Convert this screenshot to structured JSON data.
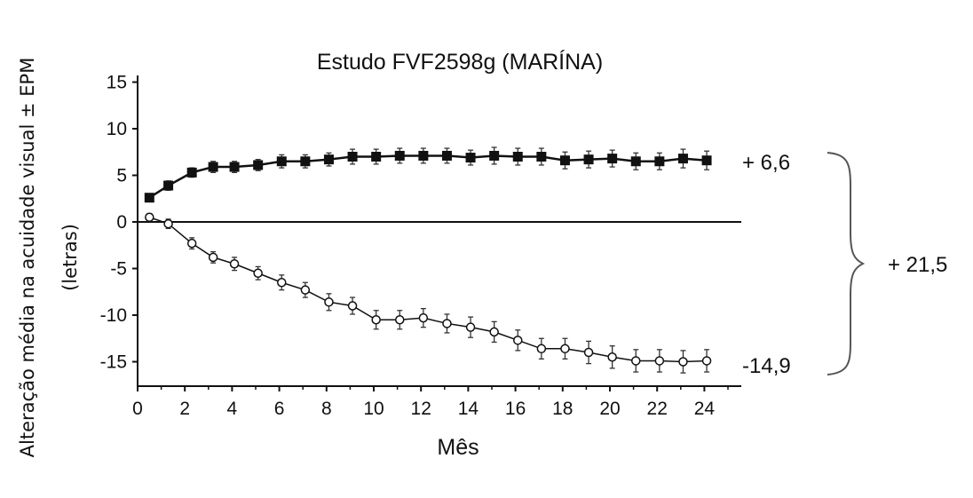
{
  "chart_data": {
    "type": "line",
    "title": "Estudo FVF2598g (MARÍNA)",
    "xlabel": "Mês",
    "ylabel_line1": "Alteração média na acuidade visual ± EPM",
    "ylabel_line2": "(letras)",
    "xlim": [
      0,
      25
    ],
    "ylim": [
      -17,
      16
    ],
    "xticks": [
      0,
      2,
      4,
      6,
      8,
      10,
      12,
      14,
      16,
      18,
      20,
      22,
      24
    ],
    "yticks": [
      15,
      10,
      5,
      0,
      -5,
      -10,
      -15
    ],
    "grid": false,
    "zero_line": true,
    "series": [
      {
        "marker": "filled-square",
        "x": [
          0.5,
          1.3,
          2.3,
          3.2,
          4.1,
          5.1,
          6.1,
          7.1,
          8.1,
          9.1,
          10.1,
          11.1,
          12.1,
          13.1,
          14.1,
          15.1,
          16.1,
          17.1,
          18.1,
          19.1,
          20.1,
          21.1,
          22.1,
          23.1,
          24.1
        ],
        "y": [
          2.6,
          3.9,
          5.3,
          5.9,
          5.9,
          6.1,
          6.5,
          6.5,
          6.7,
          7.0,
          7.0,
          7.1,
          7.1,
          7.1,
          6.9,
          7.1,
          7.0,
          7.0,
          6.6,
          6.7,
          6.8,
          6.5,
          6.5,
          6.8,
          6.6
        ],
        "err": [
          0.4,
          0.5,
          0.5,
          0.6,
          0.6,
          0.6,
          0.7,
          0.7,
          0.7,
          0.8,
          0.8,
          0.8,
          0.8,
          0.8,
          0.8,
          0.9,
          0.9,
          0.9,
          0.9,
          0.9,
          0.9,
          0.9,
          0.9,
          1.0,
          1.0
        ]
      },
      {
        "marker": "open-circle",
        "x": [
          0.5,
          1.3,
          2.3,
          3.2,
          4.1,
          5.1,
          6.1,
          7.1,
          8.1,
          9.1,
          10.1,
          11.1,
          12.1,
          13.1,
          14.1,
          15.1,
          16.1,
          17.1,
          18.1,
          19.1,
          20.1,
          21.1,
          22.1,
          23.1,
          24.1
        ],
        "y": [
          0.5,
          -0.2,
          -2.3,
          -3.8,
          -4.5,
          -5.5,
          -6.5,
          -7.3,
          -8.6,
          -9.0,
          -10.5,
          -10.5,
          -10.3,
          -10.9,
          -11.3,
          -11.8,
          -12.7,
          -13.6,
          -13.6,
          -14.0,
          -14.5,
          -14.9,
          -14.9,
          -15.0,
          -14.9
        ],
        "err": [
          0.4,
          0.5,
          0.6,
          0.6,
          0.7,
          0.7,
          0.8,
          0.8,
          0.9,
          0.9,
          1.0,
          1.0,
          1.0,
          1.0,
          1.1,
          1.1,
          1.1,
          1.1,
          1.1,
          1.2,
          1.2,
          1.2,
          1.2,
          1.2,
          1.2
        ]
      }
    ],
    "annotations": {
      "upper_end": "+ 6,6",
      "lower_end": "-14,9",
      "difference": "+ 21,5"
    }
  }
}
